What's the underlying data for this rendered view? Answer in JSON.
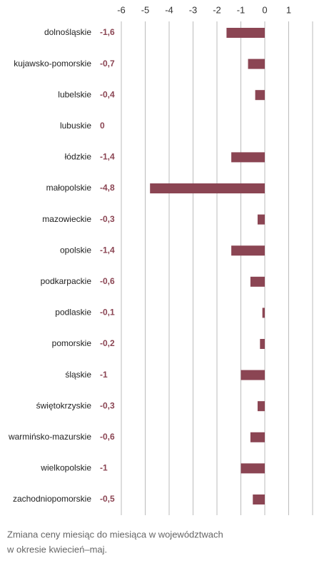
{
  "chart_data": {
    "type": "barh",
    "categories": [
      "dolnośląskie",
      "kujawsko-pomorskie",
      "lubelskie",
      "lubuskie",
      "łódzkie",
      "małopolskie",
      "mazowieckie",
      "opolskie",
      "podkarpackie",
      "podlaskie",
      "pomorskie",
      "śląskie",
      "świętokrzyskie",
      "warmińsko-mazurskie",
      "wielkopolskie",
      "zachodniopomorskie"
    ],
    "values": [
      -1.6,
      -0.7,
      -0.4,
      0,
      -1.4,
      -4.8,
      -0.3,
      -1.4,
      -0.6,
      -0.1,
      -0.2,
      -1,
      -0.3,
      -0.6,
      -1,
      -0.5
    ],
    "value_labels": [
      "-1,6",
      "-0,7",
      "-0,4",
      "0",
      "-1,4",
      "-4,8",
      "-0,3",
      "-1,4",
      "-0,6",
      "-0,1",
      "-0,2",
      "-1",
      "-0,3",
      "-0,6",
      "-1",
      "-0,5"
    ],
    "color": "#8b4553",
    "xlim": [
      -6,
      2
    ],
    "xticks": [
      -6,
      -5,
      -4,
      -3,
      -2,
      -1,
      0,
      1
    ],
    "grid": true,
    "caption": [
      "Zmiana ceny miesiąc do miesiąca w województwach",
      "w okresie kwiecień–maj."
    ]
  }
}
